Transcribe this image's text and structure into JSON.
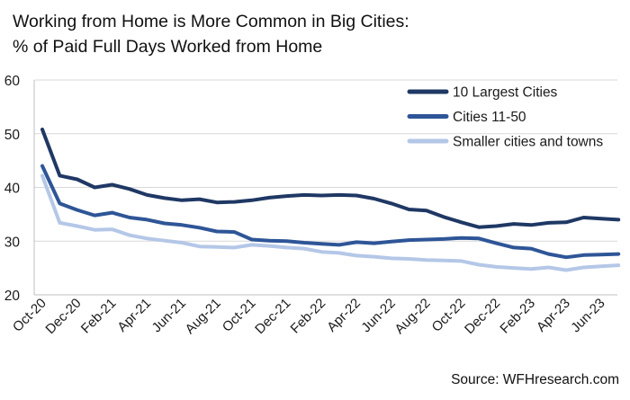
{
  "title_line1": "Working from Home is More Common in Big Cities:",
  "title_line2": "% of Paid Full Days Worked from Home",
  "source": "Source: WFHresearch.com",
  "chart_data": {
    "type": "line",
    "title": "Working from Home is More Common in Big Cities: % of Paid Full Days Worked from Home",
    "xlabel": "",
    "ylabel": "",
    "ylim": [
      20,
      60
    ],
    "yticks": [
      20,
      30,
      40,
      50,
      60
    ],
    "grid": true,
    "legend_position": "top-right",
    "x": [
      "Oct-20",
      "Nov-20",
      "Dec-20",
      "Jan-21",
      "Feb-21",
      "Mar-21",
      "Apr-21",
      "May-21",
      "Jun-21",
      "Jul-21",
      "Aug-21",
      "Sep-21",
      "Oct-21",
      "Nov-21",
      "Dec-21",
      "Jan-22",
      "Feb-22",
      "Mar-22",
      "Apr-22",
      "May-22",
      "Jun-22",
      "Jul-22",
      "Aug-22",
      "Sep-22",
      "Oct-22",
      "Nov-22",
      "Dec-22",
      "Jan-23",
      "Feb-23",
      "Mar-23",
      "Apr-23",
      "May-23",
      "Jun-23",
      "Jul-23"
    ],
    "xtick_labels": [
      "Oct-20",
      "Dec-20",
      "Feb-21",
      "Apr-21",
      "Jun-21",
      "Aug-21",
      "Oct-21",
      "Dec-21",
      "Feb-22",
      "Apr-22",
      "Jun-22",
      "Aug-22",
      "Oct-22",
      "Dec-22",
      "Feb-23",
      "Apr-23",
      "Jun-23"
    ],
    "series": [
      {
        "name": "10 Largest Cities",
        "color": "#1f3864",
        "values": [
          50.8,
          42.2,
          41.5,
          40.0,
          40.5,
          39.7,
          38.6,
          38.0,
          37.6,
          37.8,
          37.2,
          37.3,
          37.6,
          38.1,
          38.4,
          38.6,
          38.5,
          38.6,
          38.5,
          37.9,
          37.0,
          35.9,
          35.7,
          34.5,
          33.5,
          32.6,
          32.8,
          33.2,
          33.0,
          33.4,
          33.5,
          34.4,
          34.2,
          34.0
        ]
      },
      {
        "name": "Cities 11-50",
        "color": "#2e5597",
        "values": [
          44.0,
          37.0,
          35.8,
          34.8,
          35.3,
          34.4,
          34.0,
          33.3,
          33.0,
          32.5,
          31.8,
          31.7,
          30.3,
          30.1,
          30.0,
          29.7,
          29.5,
          29.3,
          29.8,
          29.6,
          29.9,
          30.2,
          30.3,
          30.4,
          30.6,
          30.5,
          29.6,
          28.8,
          28.6,
          27.6,
          27.0,
          27.4,
          27.5,
          27.6
        ]
      },
      {
        "name": "Smaller cities and towns",
        "color": "#b4c7e7",
        "values": [
          42.2,
          33.4,
          32.8,
          32.1,
          32.2,
          31.1,
          30.5,
          30.1,
          29.7,
          29.0,
          28.9,
          28.8,
          29.3,
          29.1,
          28.8,
          28.6,
          28.0,
          27.8,
          27.3,
          27.1,
          26.8,
          26.7,
          26.5,
          26.4,
          26.3,
          25.6,
          25.2,
          25.0,
          24.8,
          25.1,
          24.6,
          25.1,
          25.3,
          25.5
        ]
      }
    ]
  }
}
